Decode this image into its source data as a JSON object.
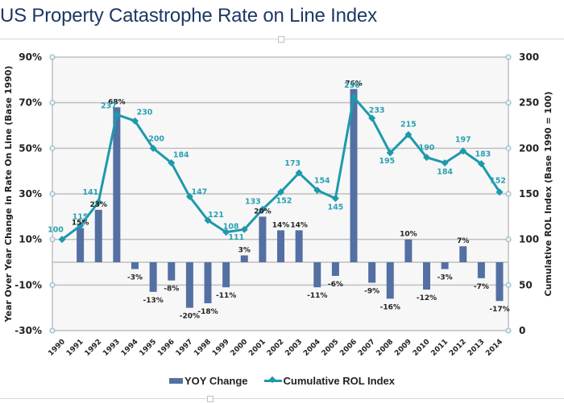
{
  "chart_data": {
    "type": "bar+line",
    "title": "US Property Catastrophe Rate on Line Index",
    "categories": [
      "1990",
      "1991",
      "1992",
      "1993",
      "1994",
      "1995",
      "1996",
      "1997",
      "1998",
      "1999",
      "2000",
      "2001",
      "2002",
      "2003",
      "2004",
      "2005",
      "2006",
      "2007",
      "2008",
      "2009",
      "2010",
      "2011",
      "2012",
      "2013",
      "2014"
    ],
    "series": [
      {
        "name": "YOY Change",
        "type": "bar",
        "axis": "left",
        "color": "#5470a3",
        "values": [
          null,
          15,
          23,
          68,
          -3,
          -13,
          -8,
          -20,
          -18,
          -11,
          3,
          20,
          14,
          14,
          -11,
          -6,
          76,
          -9,
          -16,
          10,
          -12,
          -3,
          7,
          -7,
          -17
        ],
        "labels": [
          "",
          "15%",
          "23%",
          "68%",
          "-3%",
          "-13%",
          "-8%",
          "-20%",
          "-18%",
          "-11%",
          "3%",
          "20%",
          "14%",
          "14%",
          "-11%",
          "-6%",
          "76%",
          "-9%",
          "-16%",
          "10%",
          "-12%",
          "-3%",
          "7%",
          "-7%",
          "-17%"
        ]
      },
      {
        "name": "Cumulative ROL Index",
        "type": "line",
        "axis": "right",
        "color": "#1d99ac",
        "values": [
          100,
          115,
          141,
          237,
          230,
          200,
          184,
          147,
          121,
          108,
          111,
          133,
          152,
          173,
          154,
          145,
          256,
          233,
          195,
          215,
          190,
          184,
          197,
          183,
          152
        ],
        "labels": [
          "100",
          "115",
          "141",
          "237",
          "230",
          "200",
          "184",
          "147",
          "121",
          "108",
          "111",
          "133",
          "152",
          "173",
          "154",
          "145",
          "256",
          "233",
          "195",
          "215",
          "190",
          "184",
          "197",
          "183",
          "152"
        ]
      }
    ],
    "ylabel": "Year Over Year Change in Rate On Line (Base 1990)",
    "ylabel_right": "Cumulative ROL Index (Base 1990 = 100)",
    "xlabel": "",
    "ylim": [
      -30,
      90
    ],
    "ylim_right": [
      0,
      300
    ],
    "yticks": [
      "90%",
      "70%",
      "50%",
      "30%",
      "10%",
      "-10%",
      "-30%"
    ],
    "ytick_values": [
      90,
      70,
      50,
      30,
      10,
      -10,
      -30
    ],
    "yticks_right": [
      "300",
      "250",
      "200",
      "150",
      "100",
      "50",
      "0"
    ],
    "ytick_values_right": [
      300,
      250,
      200,
      150,
      100,
      50,
      0
    ],
    "grid": true,
    "legend_position": "bottom",
    "legend": [
      "YOY Change",
      "Cumulative ROL Index"
    ]
  }
}
